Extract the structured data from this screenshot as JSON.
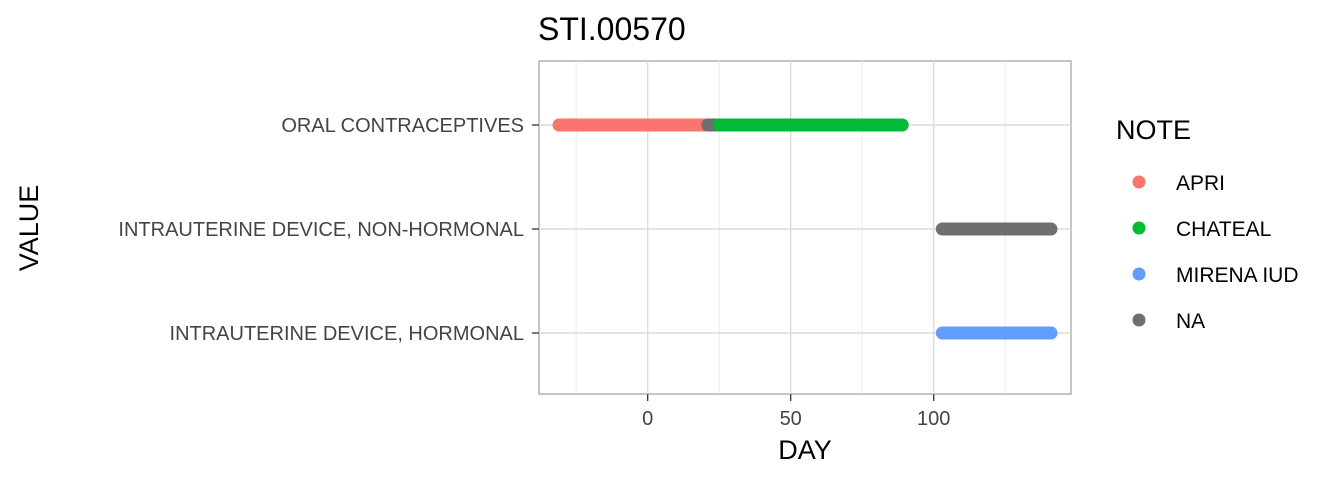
{
  "chart_data": {
    "type": "line",
    "title": "STI.00570",
    "xlabel": "DAY",
    "ylabel": "VALUE",
    "xlim": [
      -38,
      148
    ],
    "x_ticks": [
      0,
      50,
      100
    ],
    "x_tick_labels": [
      "0",
      "50",
      "100"
    ],
    "categories": [
      "ORAL CONTRACEPTIVES",
      "INTRAUTERINE DEVICE, NON-HORMONAL",
      "INTRAUTERINE DEVICE, HORMONAL"
    ],
    "grid": true,
    "legend": {
      "title": "NOTE",
      "placement": "right",
      "entries": [
        {
          "label": "APRI",
          "color": "#F8766D"
        },
        {
          "label": "CHATEAL",
          "color": "#00BA38"
        },
        {
          "label": "MIRENA IUD",
          "color": "#619CFF"
        },
        {
          "label": "NA",
          "color": "#6F6F6F"
        }
      ]
    },
    "series": [
      {
        "name": "APRI",
        "color": "#F8766D",
        "segments": [
          {
            "category": "ORAL CONTRACEPTIVES",
            "x_start": -31,
            "x_end": 21
          }
        ]
      },
      {
        "name": "NA",
        "color": "#6F6F6F",
        "segments": [
          {
            "category": "ORAL CONTRACEPTIVES",
            "x_start": 21,
            "x_end": 25
          },
          {
            "category": "INTRAUTERINE DEVICE, NON-HORMONAL",
            "x_start": 103,
            "x_end": 141
          }
        ]
      },
      {
        "name": "CHATEAL",
        "color": "#00BA38",
        "segments": [
          {
            "category": "ORAL CONTRACEPTIVES",
            "x_start": 25,
            "x_end": 89
          }
        ]
      },
      {
        "name": "MIRENA IUD",
        "color": "#619CFF",
        "segments": [
          {
            "category": "INTRAUTERINE DEVICE, HORMONAL",
            "x_start": 103,
            "x_end": 141
          }
        ]
      }
    ]
  }
}
